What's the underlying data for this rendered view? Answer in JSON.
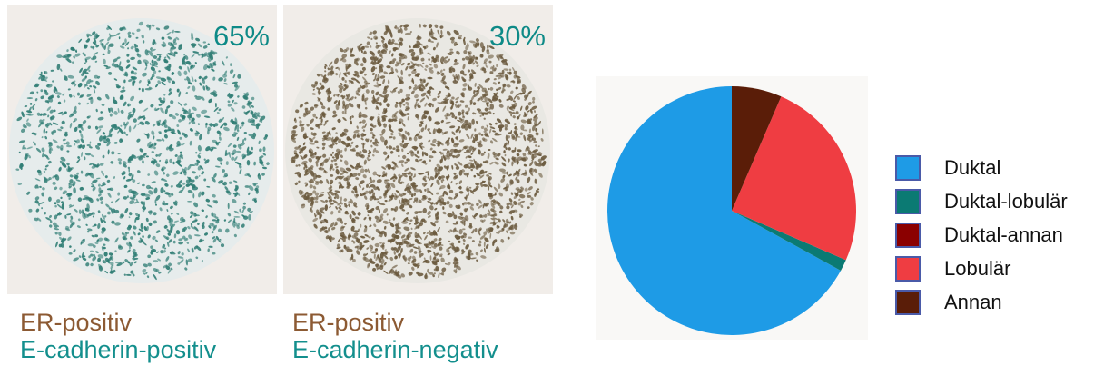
{
  "panels": [
    {
      "percent": "65%",
      "caption_line1": "ER-positiv",
      "caption_line2": "E-cadherin-positiv",
      "stain_color": "#2f7d74"
    },
    {
      "percent": "30%",
      "caption_line1": "ER-positiv",
      "caption_line2": "E-cadherin-negativ",
      "stain_color": "#6b5a3e"
    }
  ],
  "colors": {
    "er_text": "#8c5a33",
    "ecadherin_text": "#138f8d",
    "percent_text": "#0e8a87"
  },
  "chart_data": {
    "type": "pie",
    "title": "",
    "categories": [
      "Duktal",
      "Duktal-lobulär",
      "Duktal-annan",
      "Lobulär",
      "Annan"
    ],
    "values": [
      67,
      1.5,
      0,
      25,
      6.5
    ],
    "colors": [
      "#1e9be6",
      "#0b7a73",
      "#8b0000",
      "#ef3d42",
      "#5a1d08"
    ],
    "legend_position": "right"
  }
}
